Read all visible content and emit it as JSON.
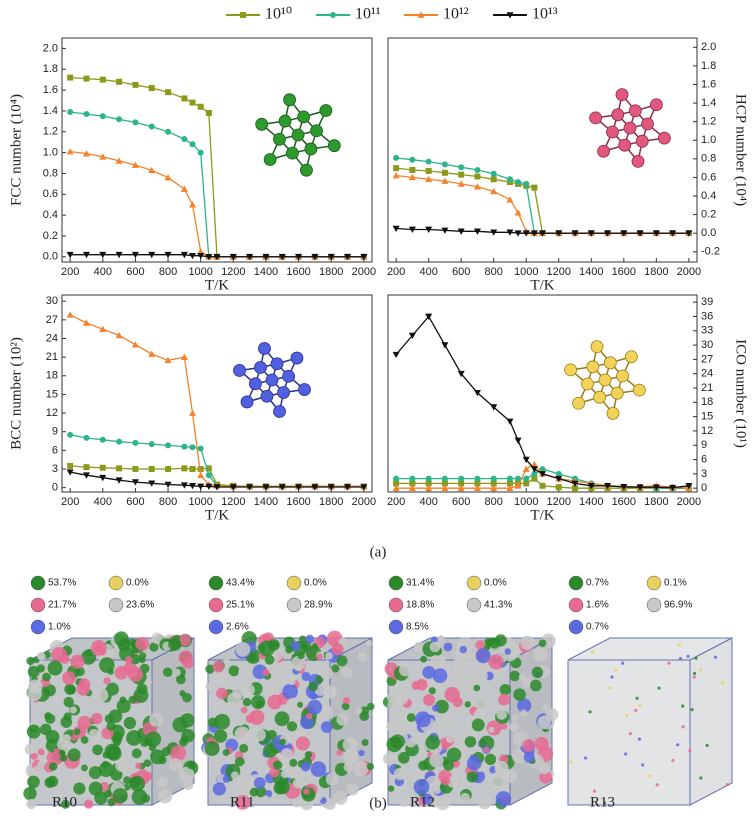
{
  "chart_data": [
    {
      "type": "line",
      "ylabel": "FCC number (10⁴)",
      "xlabel": "T/K",
      "yaxis_side": "left",
      "x": [
        200,
        300,
        400,
        500,
        600,
        700,
        800,
        900,
        950,
        1000,
        1050,
        1100,
        1200,
        1300,
        1400,
        1500,
        1600,
        1700,
        1800,
        1900,
        2000
      ],
      "xlim": [
        150,
        2050
      ],
      "xticks": [
        200,
        400,
        600,
        800,
        1000,
        1200,
        1400,
        1600,
        1800,
        2000
      ],
      "ylim": [
        -0.05,
        2.1
      ],
      "yticks": [
        {
          "value": 0,
          "label": "0.0"
        },
        0.2,
        0.4,
        0.6,
        0.8,
        {
          "value": 1,
          "label": "1.0"
        },
        1.2,
        1.4,
        1.6,
        1.8,
        {
          "value": 2,
          "label": "2.0"
        }
      ],
      "series": [
        {
          "name": "10¹⁰",
          "color": "#8c9a1a",
          "marker": "square",
          "values": [
            1.72,
            1.71,
            1.7,
            1.68,
            1.65,
            1.62,
            1.58,
            1.52,
            1.48,
            1.44,
            1.38,
            0,
            0,
            0,
            0,
            0,
            0,
            0,
            0,
            0,
            0
          ]
        },
        {
          "name": "10¹¹",
          "color": "#2ab58c",
          "marker": "circle",
          "values": [
            1.39,
            1.37,
            1.35,
            1.32,
            1.29,
            1.25,
            1.2,
            1.13,
            1.08,
            1.0,
            0,
            0,
            0,
            0,
            0,
            0,
            0,
            0,
            0,
            0,
            0
          ]
        },
        {
          "name": "10¹²",
          "color": "#f5812a",
          "marker": "triangle-up",
          "values": [
            1.01,
            0.99,
            0.96,
            0.92,
            0.88,
            0.83,
            0.76,
            0.65,
            0.5,
            0.05,
            0,
            0,
            0,
            0,
            0,
            0,
            0,
            0,
            0,
            0,
            0
          ]
        },
        {
          "name": "10¹³",
          "color": "#111111",
          "marker": "triangle-down",
          "values": [
            0.02,
            0.02,
            0.02,
            0.02,
            0.02,
            0.02,
            0.02,
            0.02,
            0.01,
            0.01,
            0,
            0,
            0,
            0,
            0,
            0,
            0,
            0,
            0,
            0,
            0
          ]
        }
      ]
    },
    {
      "type": "line",
      "ylabel": "HCP number (10⁴)",
      "xlabel": "T/K",
      "yaxis_side": "right",
      "x": [
        200,
        300,
        400,
        500,
        600,
        700,
        800,
        900,
        950,
        1000,
        1050,
        1100,
        1200,
        1300,
        1400,
        1500,
        1600,
        1700,
        1800,
        1900,
        2000
      ],
      "xlim": [
        150,
        2050
      ],
      "xticks": [
        200,
        400,
        600,
        800,
        1000,
        1200,
        1400,
        1600,
        1800,
        2000
      ],
      "ylim": [
        -0.31,
        2.1
      ],
      "yticks": [
        -0.2,
        {
          "value": 0,
          "label": "0.0"
        },
        0.2,
        0.4,
        0.6,
        0.8,
        {
          "value": 1,
          "label": "1.0"
        },
        1.2,
        1.4,
        1.6,
        1.8,
        {
          "value": 2,
          "label": "2.0"
        }
      ],
      "series": [
        {
          "name": "10¹⁰",
          "color": "#8c9a1a",
          "marker": "square",
          "values": [
            0.7,
            0.68,
            0.67,
            0.65,
            0.63,
            0.61,
            0.58,
            0.55,
            0.53,
            0.51,
            0.49,
            0,
            0,
            0,
            0,
            0,
            0,
            0,
            0,
            0,
            0
          ]
        },
        {
          "name": "10¹¹",
          "color": "#2ab58c",
          "marker": "circle",
          "values": [
            0.81,
            0.79,
            0.77,
            0.74,
            0.71,
            0.68,
            0.64,
            0.58,
            0.55,
            0.53,
            0,
            0,
            0,
            0,
            0,
            0,
            0,
            0,
            0,
            0,
            0
          ]
        },
        {
          "name": "10¹²",
          "color": "#f5812a",
          "marker": "triangle-up",
          "values": [
            0.62,
            0.6,
            0.58,
            0.56,
            0.53,
            0.5,
            0.45,
            0.36,
            0.22,
            0.02,
            0,
            0,
            0,
            0,
            0,
            0,
            0,
            0,
            0,
            0,
            0
          ]
        },
        {
          "name": "10¹³",
          "color": "#111111",
          "marker": "triangle-down",
          "values": [
            0.05,
            0.04,
            0.04,
            0.03,
            0.02,
            0.02,
            0.01,
            0.01,
            0,
            0,
            0,
            0,
            0,
            0,
            0,
            0,
            0,
            0,
            0,
            0,
            0
          ]
        }
      ]
    },
    {
      "type": "line",
      "ylabel": "BCC number (10²)",
      "xlabel": "T/K",
      "yaxis_side": "left",
      "x": [
        200,
        300,
        400,
        500,
        600,
        700,
        800,
        900,
        950,
        1000,
        1050,
        1100,
        1200,
        1300,
        1400,
        1500,
        1600,
        1700,
        1800,
        1900,
        2000
      ],
      "xlim": [
        150,
        2050
      ],
      "xticks": [
        200,
        400,
        600,
        800,
        1000,
        1200,
        1400,
        1600,
        1800,
        2000
      ],
      "ylim": [
        -0.7,
        31
      ],
      "yticks": [
        0,
        3,
        6,
        9,
        12,
        15,
        18,
        21,
        24,
        27,
        30
      ],
      "series": [
        {
          "name": "10¹⁰",
          "color": "#8c9a1a",
          "marker": "square",
          "values": [
            3.5,
            3.3,
            3.2,
            3.1,
            3.0,
            3.0,
            3.0,
            3.1,
            3.0,
            3.0,
            3.1,
            0.5,
            0.3,
            0.2,
            0.2,
            0.2,
            0.2,
            0.2,
            0.2,
            0.2,
            0.2
          ]
        },
        {
          "name": "10¹¹",
          "color": "#2ab58c",
          "marker": "circle",
          "values": [
            8.5,
            8.0,
            7.7,
            7.4,
            7.2,
            7.0,
            6.8,
            6.6,
            6.5,
            6.3,
            2.0,
            0.3,
            0.2,
            0.2,
            0.2,
            0.2,
            0.2,
            0.2,
            0.2,
            0.2,
            0.2
          ]
        },
        {
          "name": "10¹²",
          "color": "#f5812a",
          "marker": "triangle-up",
          "values": [
            27.8,
            26.5,
            25.5,
            24.5,
            23.0,
            21.5,
            20.5,
            21.0,
            12.0,
            2.0,
            0.5,
            0.3,
            0.2,
            0.2,
            0.2,
            0.2,
            0.2,
            0.2,
            0.2,
            0.2,
            0.2
          ]
        },
        {
          "name": "10¹³",
          "color": "#111111",
          "marker": "triangle-down",
          "values": [
            2.5,
            2.0,
            1.6,
            1.2,
            0.9,
            0.7,
            0.5,
            0.4,
            0.3,
            0.2,
            0.2,
            0.1,
            0.1,
            0.1,
            0.1,
            0.1,
            0.1,
            0.1,
            0.1,
            0.1,
            0.1
          ]
        }
      ]
    },
    {
      "type": "line",
      "ylabel": "ICO number (10¹)",
      "xlabel": "T/K",
      "yaxis_side": "right",
      "x": [
        200,
        300,
        400,
        500,
        600,
        700,
        800,
        900,
        950,
        1000,
        1050,
        1100,
        1200,
        1300,
        1400,
        1500,
        1600,
        1700,
        1800,
        1900,
        2000
      ],
      "xlim": [
        150,
        2050
      ],
      "xticks": [
        200,
        400,
        600,
        800,
        1000,
        1200,
        1400,
        1600,
        1800,
        2000
      ],
      "ylim": [
        -0.8,
        40.5
      ],
      "yticks": [
        0,
        3,
        6,
        9,
        12,
        15,
        18,
        21,
        24,
        27,
        30,
        33,
        36,
        39
      ],
      "series": [
        {
          "name": "10¹⁰",
          "color": "#8c9a1a",
          "marker": "square",
          "values": [
            1,
            1,
            1,
            1,
            1,
            1,
            1,
            1,
            1,
            1,
            2,
            0.5,
            0.2,
            0,
            0,
            0,
            0,
            0,
            0,
            0,
            0
          ]
        },
        {
          "name": "10¹¹",
          "color": "#2ab58c",
          "marker": "circle",
          "values": [
            2,
            2,
            2,
            2,
            2,
            2,
            2,
            2,
            2,
            2,
            3,
            4,
            3,
            2,
            1,
            0.5,
            0.3,
            0.3,
            0,
            0,
            0
          ]
        },
        {
          "name": "10¹²",
          "color": "#f5812a",
          "marker": "triangle-up",
          "values": [
            0,
            0,
            0,
            0,
            0,
            0,
            0,
            0,
            0.5,
            4,
            5,
            3,
            2,
            1.5,
            1,
            0.5,
            0.3,
            0.3,
            0.5,
            0.2,
            0
          ]
        },
        {
          "name": "10¹³",
          "color": "#111111",
          "marker": "triangle-down",
          "values": [
            28,
            32,
            36,
            30,
            24,
            20,
            17,
            14,
            10,
            6,
            4,
            3,
            2,
            1,
            0.5,
            0.5,
            0.3,
            0.2,
            0.2,
            0.1,
            0.5
          ]
        }
      ]
    }
  ],
  "panel_a_label": "(a)",
  "panel_b": {
    "label": "(b)",
    "samples": [
      {
        "name": "R10",
        "fcc": "53.7%",
        "ico": "0.0%",
        "hcp": "21.7%",
        "other": "23.6%",
        "bcc": "1.0%"
      },
      {
        "name": "R11",
        "fcc": "43.4%",
        "ico": "0.0%",
        "hcp": "25.1%",
        "other": "28.9%",
        "bcc": "2.6%"
      },
      {
        "name": "R12",
        "fcc": "31.4%",
        "ico": "0.0%",
        "hcp": "18.8%",
        "other": "41.3%",
        "bcc": "8.5%"
      },
      {
        "name": "R13",
        "fcc": "0.7%",
        "ico": "0.1%",
        "hcp": "1.6%",
        "other": "96.9%",
        "bcc": "0.7%"
      }
    ]
  }
}
